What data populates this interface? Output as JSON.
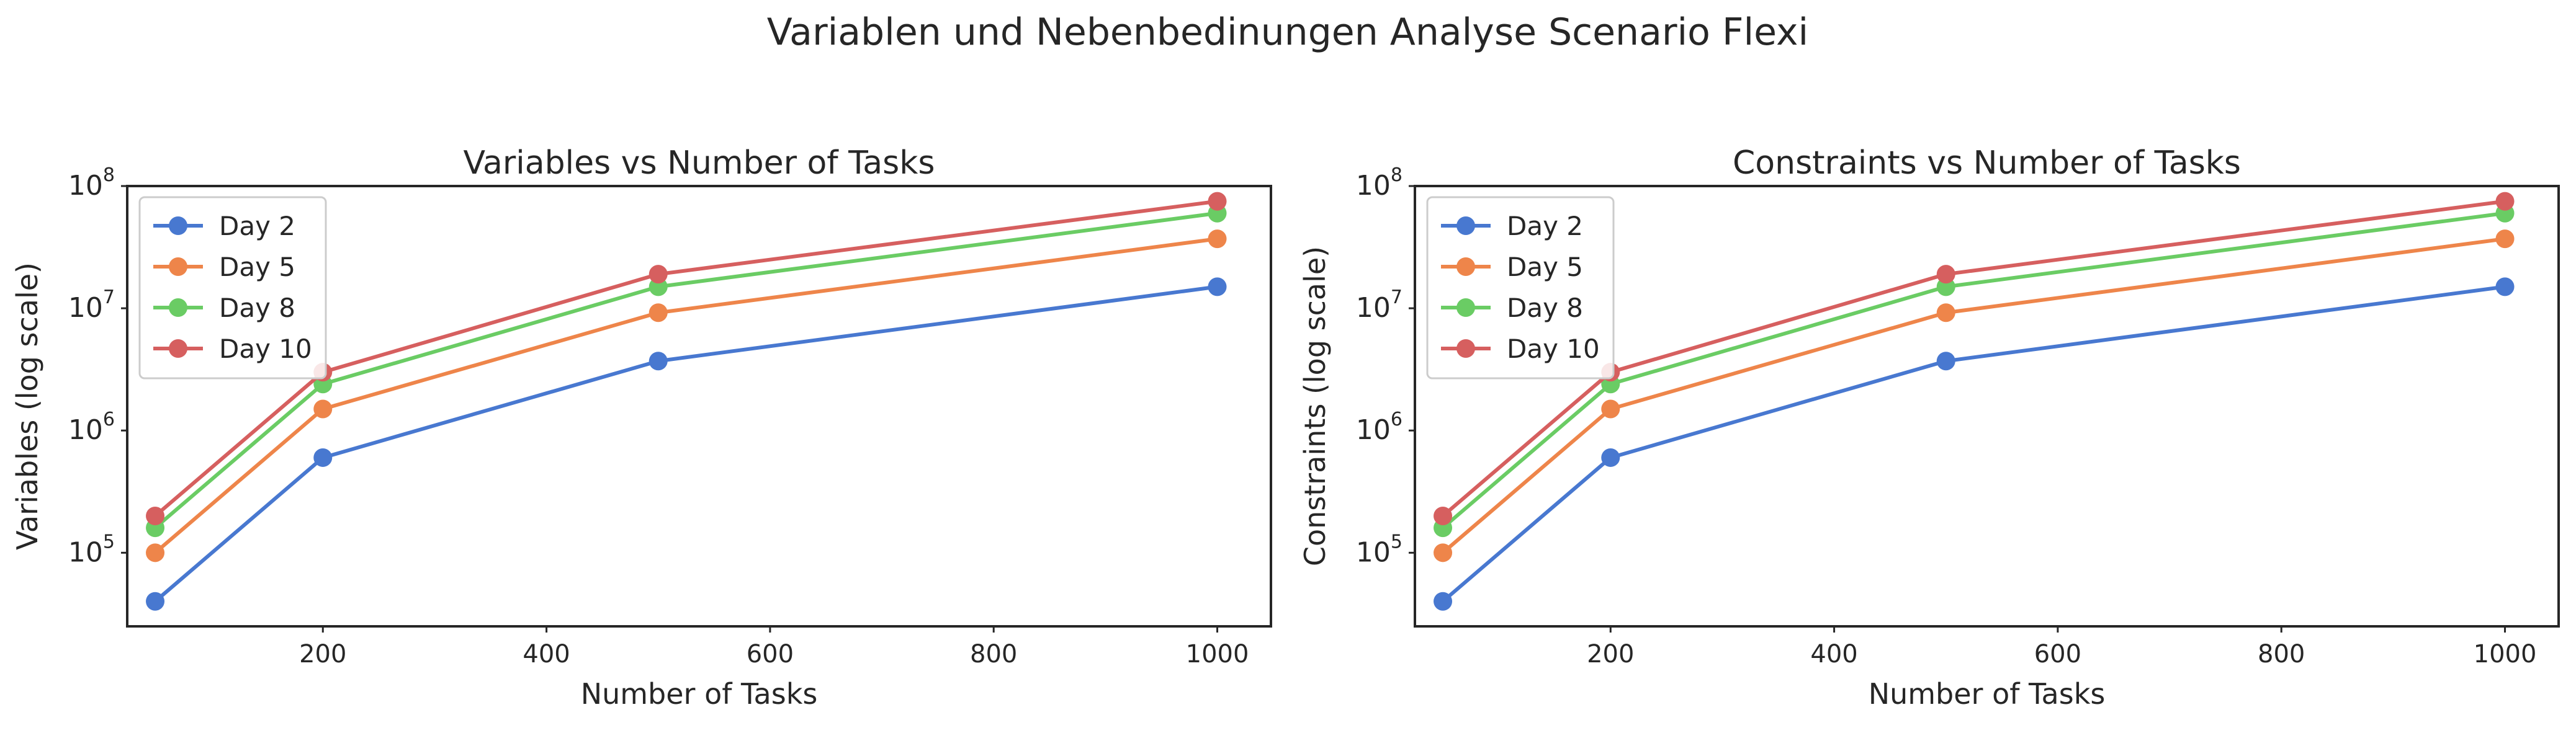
{
  "figure": {
    "suptitle": "Variablen und Nebenbedinungen Analyse Scenario Flexi"
  },
  "colors": {
    "Day 2": "#4878d0",
    "Day 5": "#ee854a",
    "Day 8": "#6acc64",
    "Day 10": "#d65f5f",
    "axes_frame": "#262626",
    "text": "#262626",
    "legend_border": "#cccccc"
  },
  "chart_data": [
    {
      "type": "line",
      "title": "Variables vs Number of Tasks",
      "xlabel": "Number of Tasks",
      "ylabel": "Variables (log scale)",
      "yscale": "log",
      "xlim": [
        25,
        1048
      ],
      "ylim": [
        25000,
        100000000
      ],
      "xticks": [
        200,
        400,
        600,
        800,
        1000
      ],
      "xtick_labels": [
        "200",
        "400",
        "600",
        "800",
        "1000"
      ],
      "yticks": [
        100000,
        1000000,
        10000000,
        100000000
      ],
      "ytick_labels": [
        {
          "base": "10",
          "exp": "5"
        },
        {
          "base": "10",
          "exp": "6"
        },
        {
          "base": "10",
          "exp": "7"
        },
        {
          "base": "10",
          "exp": "8"
        }
      ],
      "grid": false,
      "legend": "upper-left",
      "x": [
        50,
        200,
        500,
        1000
      ],
      "series": [
        {
          "name": "Day 2",
          "values": [
            40000,
            600000,
            3700000,
            15000000
          ]
        },
        {
          "name": "Day 5",
          "values": [
            100000,
            1500000,
            9200000,
            37000000
          ]
        },
        {
          "name": "Day 8",
          "values": [
            160000,
            2400000,
            15000000,
            60000000
          ]
        },
        {
          "name": "Day 10",
          "values": [
            200000,
            3000000,
            19000000,
            75000000
          ]
        }
      ]
    },
    {
      "type": "line",
      "title": "Constraints vs Number of Tasks",
      "xlabel": "Number of Tasks",
      "ylabel": "Constraints (log scale)",
      "yscale": "log",
      "xlim": [
        25,
        1048
      ],
      "ylim": [
        25000,
        100000000
      ],
      "xticks": [
        200,
        400,
        600,
        800,
        1000
      ],
      "xtick_labels": [
        "200",
        "400",
        "600",
        "800",
        "1000"
      ],
      "yticks": [
        100000,
        1000000,
        10000000,
        100000000
      ],
      "ytick_labels": [
        {
          "base": "10",
          "exp": "5"
        },
        {
          "base": "10",
          "exp": "6"
        },
        {
          "base": "10",
          "exp": "7"
        },
        {
          "base": "10",
          "exp": "8"
        }
      ],
      "grid": false,
      "legend": "upper-left",
      "x": [
        50,
        200,
        500,
        1000
      ],
      "series": [
        {
          "name": "Day 2",
          "values": [
            40000,
            600000,
            3700000,
            15000000
          ]
        },
        {
          "name": "Day 5",
          "values": [
            100000,
            1500000,
            9200000,
            37000000
          ]
        },
        {
          "name": "Day 8",
          "values": [
            160000,
            2400000,
            15000000,
            60000000
          ]
        },
        {
          "name": "Day 10",
          "values": [
            200000,
            3000000,
            19000000,
            75000000
          ]
        }
      ]
    }
  ]
}
